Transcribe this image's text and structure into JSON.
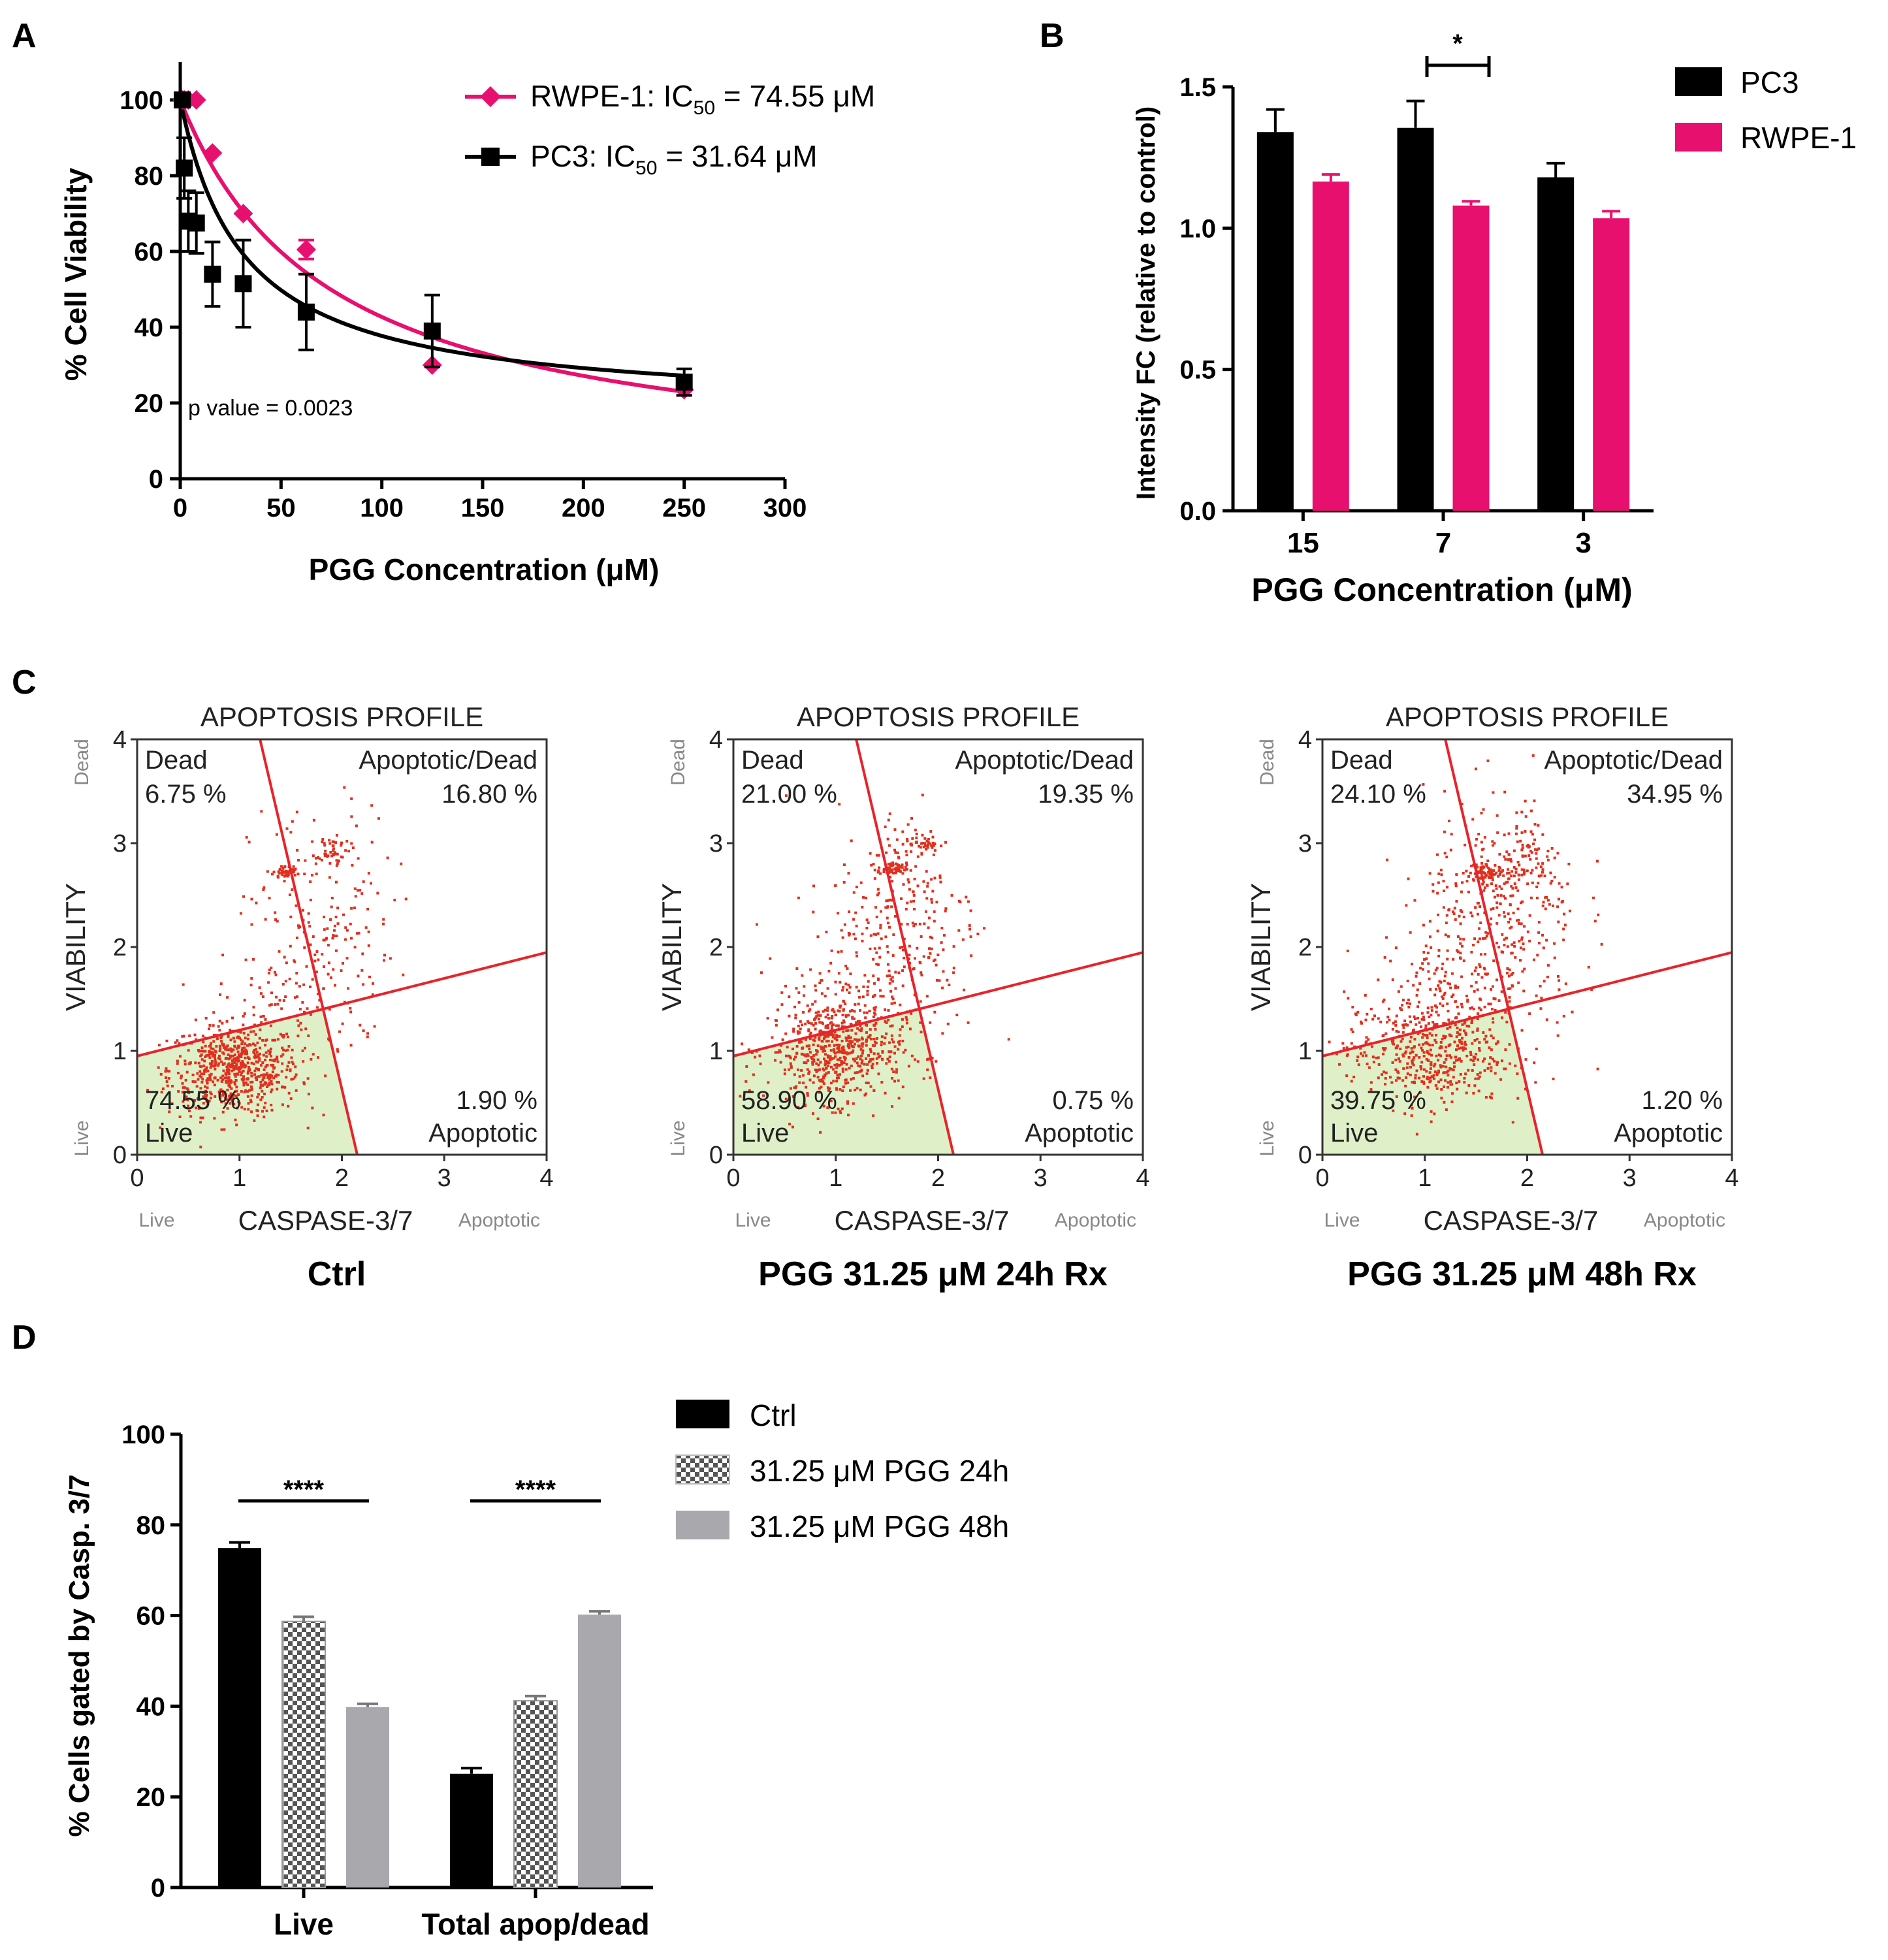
{
  "panels": {
    "a": {
      "label": "A",
      "legend": [
        {
          "name": "RWPE-1",
          "text": "RWPE-1: IC",
          "sub": "50",
          "value": " = 74.55 μM"
        },
        {
          "name": "PC3",
          "text": "PC3: IC",
          "sub": "50",
          "value": " = 31.64 μM"
        }
      ],
      "pvalue": "p value = 0.0023"
    },
    "b": {
      "label": "B",
      "sig": "*"
    },
    "c": {
      "label": "C",
      "plots": [
        {
          "caption": "Ctrl",
          "dead_pct": "6.75 %",
          "apopdead_pct": "16.80 %",
          "live_pct": "74.55 %",
          "apop_pct": "1.90 %"
        },
        {
          "caption": "PGG 31.25 μM 24h Rx",
          "dead_pct": "21.00 %",
          "apopdead_pct": "19.35 %",
          "live_pct": "58.90 %",
          "apop_pct": "0.75 %"
        },
        {
          "caption": "PGG 31.25 μM 48h Rx",
          "dead_pct": "24.10 %",
          "apopdead_pct": "34.95 %",
          "live_pct": "39.75 %",
          "apop_pct": "1.20 %"
        }
      ],
      "title": "APOPTOSIS PROFILE",
      "xlabel": "CASPASE-3/7",
      "ylabel": "VIABILITY",
      "x_low": "Live",
      "x_high": "Apoptotic",
      "y_low": "Live",
      "y_high": "Dead",
      "q_dead": "Dead",
      "q_apopdead": "Apoptotic/Dead",
      "q_live": "Live",
      "q_apop": "Apoptotic",
      "ticks": [
        "0",
        "1",
        "2",
        "3",
        "4"
      ]
    },
    "d": {
      "label": "D",
      "sig": [
        "****",
        "****"
      ]
    }
  },
  "colors": {
    "pc3": "#000000",
    "rwpe": "#e8106e",
    "gate_red": "#e8232a",
    "live_fill": "#dff0c8",
    "grey48": "#a8a8ad",
    "dots": "#e0301e"
  },
  "chart_data": [
    {
      "id": "A",
      "type": "scatter",
      "xlabel": "PGG Concentration (μM)",
      "ylabel": "% Cell Viability",
      "xlim": [
        0,
        300
      ],
      "ylim": [
        0,
        110
      ],
      "xticks": [
        0,
        50,
        100,
        150,
        200,
        250,
        300
      ],
      "yticks": [
        0,
        20,
        40,
        60,
        80,
        100
      ],
      "series": [
        {
          "name": "RWPE-1",
          "marker": "diamond",
          "ic50": 74.55,
          "x": [
            1,
            2,
            4,
            8,
            16,
            31.25,
            62.5,
            125,
            250
          ],
          "y": [
            100,
            100,
            100,
            100,
            86,
            70,
            60.5,
            30,
            23.5
          ],
          "err": [
            0,
            0,
            0,
            0,
            0,
            0,
            2.5,
            0,
            1.5
          ]
        },
        {
          "name": "PC3",
          "marker": "square",
          "ic50": 31.64,
          "x": [
            1,
            2,
            4,
            8,
            16,
            31.25,
            62.5,
            125,
            250
          ],
          "y": [
            100,
            82,
            68,
            67.5,
            54,
            51.5,
            44,
            39,
            25.5
          ],
          "err": [
            0,
            8,
            8,
            8,
            8.5,
            11.5,
            10,
            9.5,
            3.5
          ]
        }
      ]
    },
    {
      "id": "B",
      "type": "bar",
      "xlabel": "PGG Concentration (μM)",
      "ylabel": "Intensity FC (relative to control)",
      "categories": [
        "15",
        "7",
        "3"
      ],
      "ylim": [
        0,
        1.5
      ],
      "yticks": [
        "0.0",
        "0.5",
        "1.0",
        "1.5"
      ],
      "series": [
        {
          "name": "PC3",
          "values": [
            1.34,
            1.355,
            1.18
          ],
          "err": [
            0.08,
            0.095,
            0.05
          ]
        },
        {
          "name": "RWPE-1",
          "values": [
            1.165,
            1.08,
            1.035
          ],
          "err": [
            0.025,
            0.015,
            0.025
          ]
        }
      ]
    },
    {
      "id": "D",
      "type": "bar",
      "ylabel": "% Cells gated by Casp. 3/7",
      "categories": [
        "Live",
        "Total apop/dead"
      ],
      "ylim": [
        0,
        100
      ],
      "yticks": [
        "0",
        "20",
        "40",
        "60",
        "80",
        "100"
      ],
      "series": [
        {
          "name": "Ctrl",
          "values": [
            74.9,
            25.1
          ],
          "err": [
            0.8,
            0.8
          ]
        },
        {
          "name": "31.25 μM PGG 24h",
          "values": [
            58.7,
            41.2
          ],
          "err": [
            0.6,
            0.6
          ]
        },
        {
          "name": "31.25 μM PGG 48h",
          "values": [
            39.8,
            60.2
          ],
          "err": [
            0.3,
            0.3
          ]
        }
      ]
    }
  ]
}
